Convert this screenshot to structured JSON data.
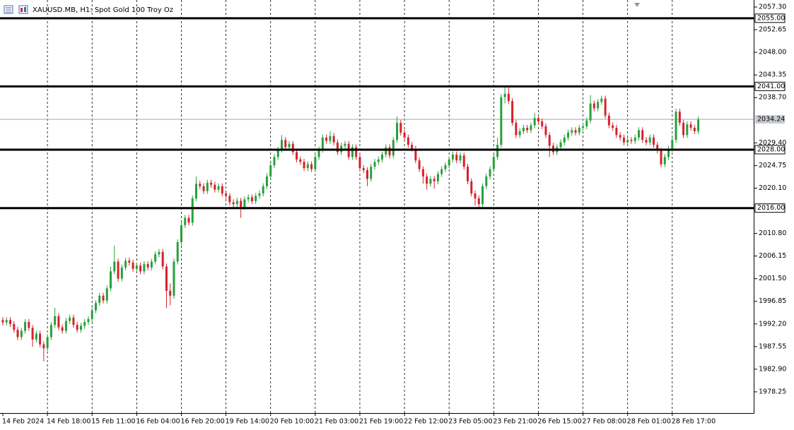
{
  "chart_data": {
    "type": "candlestick",
    "title": "XAUUSD.MB, H1:  Spot Gold 100 Troy Oz",
    "categories": [
      "14 Feb 2024",
      null,
      null,
      null,
      null,
      null,
      null,
      null,
      null,
      null,
      null,
      null,
      "14 Feb 18:00",
      null,
      null,
      null,
      null,
      null,
      null,
      null,
      null,
      null,
      null,
      null,
      "15 Feb 11:00",
      null,
      null,
      null,
      null,
      null,
      null,
      null,
      null,
      null,
      null,
      null,
      "16 Feb 04:00",
      null,
      null,
      null,
      null,
      null,
      null,
      null,
      null,
      null,
      null,
      null,
      "16 Feb 20:00",
      null,
      null,
      null,
      null,
      null,
      null,
      null,
      null,
      null,
      null,
      null,
      "19 Feb 14:00",
      null,
      null,
      null,
      null,
      null,
      null,
      null,
      null,
      null,
      null,
      null,
      "20 Feb 10:00",
      null,
      null,
      null,
      null,
      null,
      null,
      null,
      null,
      null,
      null,
      null,
      "21 Feb 03:00",
      null,
      null,
      null,
      null,
      null,
      null,
      null,
      null,
      null,
      null,
      null,
      "21 Feb 19:00",
      null,
      null,
      null,
      null,
      null,
      null,
      null,
      null,
      null,
      null,
      null,
      "22 Feb 12:00",
      null,
      null,
      null,
      null,
      null,
      null,
      null,
      null,
      null,
      null,
      null,
      "23 Feb 05:00",
      null,
      null,
      null,
      null,
      null,
      null,
      null,
      null,
      null,
      null,
      null,
      "23 Feb 21:00",
      null,
      null,
      null,
      null,
      null,
      null,
      null,
      null,
      null,
      null,
      null,
      "26 Feb 15:00",
      null,
      null,
      null,
      null,
      null,
      null,
      null,
      null,
      null,
      null,
      null,
      "27 Feb 08:00",
      null,
      null,
      null,
      null,
      null,
      null,
      null,
      null,
      null,
      null,
      null,
      "28 Feb 01:00",
      null,
      null,
      null,
      null,
      null,
      null,
      null,
      null,
      null,
      null,
      null,
      "28 Feb 17:00",
      null,
      null,
      null,
      null,
      null,
      null,
      null
    ],
    "open": [
      1993.0,
      1992.5,
      1993.0,
      1992.2,
      1991.0,
      1989.5,
      1990.8,
      1992.6,
      1991.4,
      1989.0,
      1990.2,
      1988.0,
      1987.2,
      1989.5,
      1992.0,
      1993.8,
      1991.5,
      1990.8,
      1992.8,
      1993.5,
      1992.0,
      1991.0,
      1991.8,
      1992.6,
      1993.2,
      1995.0,
      1996.5,
      1998.0,
      1997.0,
      1999.5,
      2003.0,
      2005.0,
      2001.5,
      2003.8,
      2005.2,
      2004.8,
      2003.5,
      2004.2,
      2003.0,
      2004.5,
      2003.8,
      2005.0,
      2006.5,
      2007.0,
      2004.0,
      1999.0,
      1998.0,
      2005.0,
      2009.0,
      2012.5,
      2014.0,
      2013.0,
      2018.0,
      2021.0,
      2020.5,
      2019.5,
      2021.2,
      2020.8,
      2019.8,
      2020.5,
      2019.0,
      2018.5,
      2017.2,
      2016.8,
      2017.5,
      2016.2,
      2017.8,
      2018.2,
      2017.4,
      2018.5,
      2019.0,
      2020.5,
      2022.5,
      2024.8,
      2026.5,
      2028.0,
      2030.0,
      2028.5,
      2029.2,
      2027.5,
      2026.0,
      2025.5,
      2024.2,
      2025.0,
      2024.0,
      2026.5,
      2028.0,
      2030.5,
      2029.8,
      2030.8,
      2029.5,
      2027.5,
      2028.8,
      2029.2,
      2026.5,
      2028.5,
      2026.5,
      2024.2,
      2023.8,
      2022.0,
      2024.5,
      2025.5,
      2026.0,
      2027.0,
      2028.5,
      2026.8,
      2030.0,
      2033.5,
      2031.5,
      2030.5,
      2029.0,
      2028.2,
      2025.8,
      2024.0,
      2022.5,
      2021.0,
      2022.0,
      2021.5,
      2023.0,
      2024.0,
      2024.8,
      2026.0,
      2027.0,
      2025.8,
      2026.8,
      2024.5,
      2021.5,
      2019.0,
      2018.0,
      2016.8,
      2020.5,
      2022.5,
      2024.0,
      2026.5,
      2029.0,
      2038.8,
      2039.5,
      2038.0,
      2033.5,
      2031.0,
      2031.8,
      2032.5,
      2032.0,
      2033.0,
      2034.5,
      2033.8,
      2032.8,
      2031.0,
      2028.8,
      2027.5,
      2028.5,
      2029.5,
      2030.5,
      2031.5,
      2032.0,
      2031.5,
      2032.5,
      2032.8,
      2034.0,
      2037.5,
      2036.5,
      2037.8,
      2038.5,
      2035.0,
      2033.0,
      2032.5,
      2031.0,
      2030.5,
      2029.5,
      2030.0,
      2029.8,
      2030.5,
      2032.0,
      2030.0,
      2029.5,
      2030.5,
      2029.0,
      2027.8,
      2025.0,
      2026.5,
      2028.2,
      2030.0,
      2035.8,
      2033.5,
      2031.0,
      2033.2,
      2032.5,
      2031.8
    ],
    "high": [
      1993.6,
      1993.6,
      1993.6,
      1992.8,
      1991.6,
      1991.4,
      1993.2,
      1993.2,
      1992.0,
      1990.8,
      1990.8,
      1988.6,
      1990.1,
      1992.6,
      1995.5,
      1994.4,
      1992.1,
      1993.4,
      1994.1,
      1994.1,
      1992.6,
      1992.4,
      1993.2,
      1993.8,
      1995.6,
      1997.1,
      1998.6,
      1998.6,
      2000.1,
      2004.0,
      2008.3,
      2005.6,
      2004.4,
      2005.8,
      2005.8,
      2005.4,
      2004.8,
      2004.8,
      2005.1,
      2005.1,
      2005.6,
      2007.1,
      2007.6,
      2007.6,
      2004.6,
      2000.5,
      2005.6,
      2009.6,
      2013.1,
      2014.6,
      2014.6,
      2018.6,
      2022.5,
      2021.6,
      2021.1,
      2021.8,
      2021.8,
      2021.4,
      2021.1,
      2021.1,
      2019.6,
      2019.1,
      2017.8,
      2018.1,
      2018.1,
      2018.4,
      2018.8,
      2018.8,
      2019.1,
      2019.6,
      2021.1,
      2023.1,
      2025.4,
      2027.1,
      2028.6,
      2031.0,
      2030.6,
      2029.8,
      2029.8,
      2028.1,
      2026.6,
      2026.1,
      2025.6,
      2025.6,
      2027.1,
      2028.6,
      2031.1,
      2031.1,
      2031.8,
      2031.4,
      2030.1,
      2029.4,
      2029.8,
      2029.8,
      2029.1,
      2029.1,
      2027.1,
      2024.8,
      2024.4,
      2025.1,
      2026.1,
      2026.6,
      2027.6,
      2029.1,
      2029.1,
      2030.6,
      2034.8,
      2034.1,
      2032.1,
      2031.1,
      2029.6,
      2028.8,
      2026.4,
      2024.6,
      2023.1,
      2022.6,
      2022.6,
      2023.6,
      2024.6,
      2025.4,
      2026.6,
      2027.6,
      2027.6,
      2027.4,
      2027.4,
      2025.1,
      2022.1,
      2019.6,
      2018.6,
      2021.1,
      2023.1,
      2024.6,
      2027.1,
      2030.5,
      2039.4,
      2040.8,
      2040.8,
      2038.6,
      2034.1,
      2032.4,
      2033.1,
      2033.1,
      2033.6,
      2035.5,
      2035.1,
      2034.4,
      2033.4,
      2031.6,
      2029.4,
      2029.1,
      2030.1,
      2031.1,
      2032.1,
      2032.6,
      2032.6,
      2033.1,
      2033.4,
      2034.6,
      2039.2,
      2038.1,
      2038.4,
      2039.1,
      2039.1,
      2035.6,
      2033.6,
      2033.1,
      2031.6,
      2031.1,
      2030.6,
      2030.6,
      2031.1,
      2032.6,
      2032.6,
      2030.6,
      2031.1,
      2031.1,
      2029.6,
      2028.4,
      2027.1,
      2028.8,
      2030.6,
      2036.4,
      2036.4,
      2034.1,
      2033.8,
      2033.8,
      2033.1,
      2034.8
    ],
    "low": [
      1991.9,
      1991.9,
      1991.6,
      1990.4,
      1988.9,
      1988.9,
      1990.2,
      1990.8,
      1987.5,
      1988.4,
      1987.4,
      1984.5,
      1986.6,
      1988.9,
      1991.4,
      1990.9,
      1990.2,
      1990.2,
      1992.2,
      1991.4,
      1990.4,
      1990.4,
      1991.2,
      1992.0,
      1992.6,
      1994.4,
      1995.9,
      1996.4,
      1996.4,
      1998.9,
      2002.4,
      2000.9,
      2000.9,
      2003.2,
      2004.2,
      2002.9,
      2002.9,
      2002.4,
      2002.4,
      2003.2,
      2003.2,
      2004.4,
      2005.9,
      2003.4,
      1995.5,
      1996.0,
      1997.4,
      2004.4,
      2008.4,
      2011.9,
      2012.4,
      2012.4,
      2017.4,
      2019.9,
      2018.9,
      2018.9,
      2020.2,
      2019.2,
      2019.2,
      2018.4,
      2017.9,
      2016.6,
      2016.2,
      2016.2,
      2014.0,
      2015.6,
      2017.2,
      2016.8,
      2016.8,
      2017.9,
      2018.4,
      2019.9,
      2021.9,
      2024.2,
      2025.9,
      2027.4,
      2027.9,
      2027.9,
      2026.9,
      2025.4,
      2024.9,
      2023.6,
      2023.6,
      2023.4,
      2023.4,
      2025.9,
      2027.4,
      2029.2,
      2029.2,
      2028.9,
      2026.9,
      2026.9,
      2028.2,
      2025.9,
      2025.9,
      2025.9,
      2023.6,
      2023.2,
      2020.5,
      2021.4,
      2023.9,
      2024.9,
      2025.4,
      2026.4,
      2026.2,
      2026.2,
      2029.4,
      2030.9,
      2029.9,
      2028.4,
      2027.6,
      2025.2,
      2023.4,
      2021.0,
      2019.8,
      2020.4,
      2020.0,
      2020.9,
      2022.4,
      2023.4,
      2024.2,
      2025.4,
      2025.2,
      2025.2,
      2023.9,
      2020.9,
      2018.4,
      2016.5,
      2016.2,
      2016.2,
      2019.9,
      2021.9,
      2023.4,
      2025.9,
      2028.4,
      2037.5,
      2037.4,
      2032.9,
      2030.4,
      2030.4,
      2031.2,
      2031.4,
      2031.4,
      2032.4,
      2033.2,
      2032.2,
      2030.4,
      2026.5,
      2026.9,
      2026.9,
      2027.9,
      2028.9,
      2029.9,
      2030.9,
      2030.9,
      2030.9,
      2031.9,
      2032.2,
      2033.4,
      2035.9,
      2035.9,
      2037.2,
      2034.4,
      2032.4,
      2031.9,
      2030.4,
      2029.9,
      2028.9,
      2028.9,
      2029.2,
      2029.2,
      2029.9,
      2029.4,
      2028.9,
      2028.9,
      2028.4,
      2027.2,
      2024.4,
      2024.4,
      2025.9,
      2027.6,
      2029.4,
      2032.9,
      2030.4,
      2030.4,
      2031.9,
      2031.2,
      2031.2
    ],
    "close": [
      1992.5,
      1993.0,
      1992.2,
      1991.0,
      1989.5,
      1990.8,
      1992.6,
      1991.4,
      1989.0,
      1990.2,
      1988.0,
      1987.2,
      1989.5,
      1992.0,
      1993.8,
      1991.5,
      1990.8,
      1992.8,
      1993.5,
      1992.0,
      1991.0,
      1991.8,
      1992.6,
      1993.2,
      1995.0,
      1996.5,
      1998.0,
      1997.0,
      1999.5,
      2003.0,
      2005.0,
      2001.5,
      2003.8,
      2005.2,
      2004.8,
      2003.5,
      2004.2,
      2003.0,
      2004.5,
      2003.8,
      2005.0,
      2006.5,
      2007.0,
      2004.0,
      1999.0,
      1998.0,
      2005.0,
      2009.0,
      2012.5,
      2014.0,
      2013.0,
      2018.0,
      2021.0,
      2020.5,
      2019.5,
      2021.2,
      2020.8,
      2019.8,
      2020.5,
      2019.0,
      2018.5,
      2017.2,
      2016.8,
      2017.5,
      2016.2,
      2017.8,
      2018.2,
      2017.4,
      2018.5,
      2019.0,
      2020.5,
      2022.5,
      2024.8,
      2026.5,
      2028.0,
      2030.0,
      2028.5,
      2029.2,
      2027.5,
      2026.0,
      2025.5,
      2024.2,
      2025.0,
      2024.0,
      2026.5,
      2028.0,
      2030.5,
      2029.8,
      2030.8,
      2029.5,
      2027.5,
      2028.8,
      2029.2,
      2026.5,
      2028.5,
      2026.5,
      2024.2,
      2023.8,
      2022.0,
      2024.5,
      2025.5,
      2026.0,
      2027.0,
      2028.5,
      2026.8,
      2030.0,
      2033.5,
      2031.5,
      2030.5,
      2029.0,
      2028.2,
      2025.8,
      2024.0,
      2022.5,
      2021.0,
      2022.0,
      2021.5,
      2023.0,
      2024.0,
      2024.8,
      2026.0,
      2027.0,
      2025.8,
      2026.8,
      2024.5,
      2021.5,
      2019.0,
      2018.0,
      2016.8,
      2020.5,
      2022.5,
      2024.0,
      2026.5,
      2029.0,
      2038.8,
      2039.5,
      2038.0,
      2033.5,
      2031.0,
      2031.8,
      2032.5,
      2032.0,
      2033.0,
      2034.5,
      2033.8,
      2032.8,
      2031.0,
      2028.8,
      2027.5,
      2028.5,
      2029.5,
      2030.5,
      2031.5,
      2032.0,
      2031.5,
      2032.5,
      2032.8,
      2034.0,
      2037.5,
      2036.5,
      2037.8,
      2038.5,
      2035.0,
      2033.0,
      2032.5,
      2031.0,
      2030.5,
      2029.5,
      2030.0,
      2029.8,
      2030.5,
      2032.0,
      2030.0,
      2029.5,
      2030.5,
      2029.0,
      2027.8,
      2025.0,
      2026.5,
      2028.2,
      2030.0,
      2035.8,
      2033.5,
      2031.0,
      2033.2,
      2032.5,
      2031.8,
      2034.2
    ],
    "up_color": "#26a13a",
    "down_color": "#d6212b",
    "ylim": [
      1973.89,
      2058.46
    ],
    "yticks": [
      {
        "value": 2057.3,
        "label": "2057.30"
      },
      {
        "value": 2052.65,
        "label": "2052.65"
      },
      {
        "value": 2048,
        "label": "2048.00"
      },
      {
        "value": 2043.35,
        "label": "2043.35"
      },
      {
        "value": 2038.7,
        "label": "2038.70"
      },
      {
        "value": 2029.4,
        "label": "2029.40"
      },
      {
        "value": 2024.75,
        "label": "2024.75"
      },
      {
        "value": 2020.1,
        "label": "2020.10"
      },
      {
        "value": 2010.8,
        "label": "2010.80"
      },
      {
        "value": 2006.15,
        "label": "2006.15"
      },
      {
        "value": 2001.5,
        "label": "2001.50"
      },
      {
        "value": 1996.85,
        "label": "1996.85"
      },
      {
        "value": 1992.2,
        "label": "1992.20"
      },
      {
        "value": 1987.55,
        "label": "1987.55"
      },
      {
        "value": 1982.9,
        "label": "1982.90"
      },
      {
        "value": 1978.25,
        "label": "1978.25"
      }
    ],
    "levels": [
      {
        "value": 2055,
        "label": "2055.00"
      },
      {
        "value": 2041,
        "label": "2041.00"
      },
      {
        "value": 2028,
        "label": "2028.00"
      },
      {
        "value": 2016,
        "label": "2016.00"
      }
    ],
    "last_price": {
      "value": 2034.24,
      "label": "2034.24"
    },
    "grid": true
  }
}
